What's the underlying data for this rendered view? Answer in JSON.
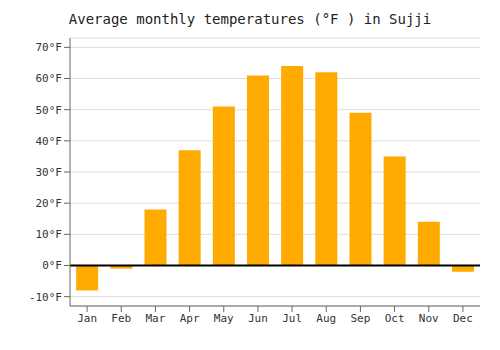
{
  "chart_data": {
    "type": "bar",
    "title": "Average monthly temperatures (°F ) in Sujji",
    "categories": [
      "Jan",
      "Feb",
      "Mar",
      "Apr",
      "May",
      "Jun",
      "Jul",
      "Aug",
      "Sep",
      "Oct",
      "Nov",
      "Dec"
    ],
    "values": [
      -8,
      -1,
      18,
      37,
      51,
      61,
      64,
      62,
      49,
      35,
      14,
      -2
    ],
    "color": "#FFAA00",
    "ylim": [
      -13,
      73
    ],
    "yticks": [
      {
        "value": -10,
        "label": "-10°F"
      },
      {
        "value": 0,
        "label": "0°F"
      },
      {
        "value": 10,
        "label": "10°F"
      },
      {
        "value": 20,
        "label": "20°F"
      },
      {
        "value": 30,
        "label": "30°F"
      },
      {
        "value": 40,
        "label": "40°F"
      },
      {
        "value": 50,
        "label": "50°F"
      },
      {
        "value": 60,
        "label": "60°F"
      },
      {
        "value": 70,
        "label": "70°F"
      }
    ],
    "grid": true
  }
}
